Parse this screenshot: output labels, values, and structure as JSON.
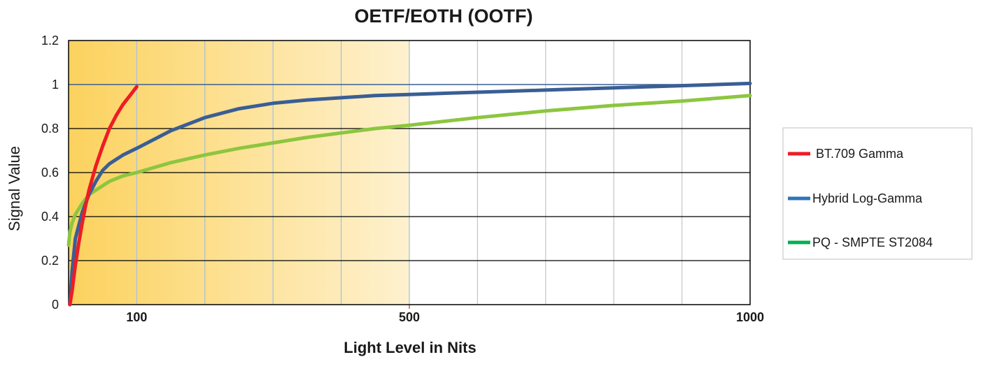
{
  "chart_data": {
    "type": "line",
    "title": "OETF/EOTH  (OOTF)",
    "xlabel": "Light Level in Nits",
    "ylabel": "Signal Value",
    "xlim": [
      0,
      1000
    ],
    "ylim": [
      0,
      1.2
    ],
    "x_ticks": [
      100,
      500,
      1000
    ],
    "x_tick_labels": [
      "100",
      "500",
      "1000"
    ],
    "y_ticks": [
      0,
      0.2,
      0.4,
      0.6,
      0.8,
      1,
      1.2
    ],
    "y_tick_labels": [
      "0",
      "0.2",
      "0.4",
      "0.6",
      "0.8",
      "1",
      "1.2"
    ],
    "grid": true,
    "legend_position": "right",
    "highlight_region": {
      "x_start": 0,
      "x_end": 500,
      "color_start": "#fcd25e",
      "color_end": "#fef1cf"
    },
    "colors": {
      "grid_major": "#000000",
      "grid_minor": "#c8c8c8",
      "plot_border": "#000000"
    },
    "series": [
      {
        "name": "BT.709  Gamma",
        "color": "#ee1c25",
        "x": [
          2,
          5,
          10,
          15,
          20,
          25,
          30,
          40,
          50,
          60,
          70,
          80,
          90,
          100
        ],
        "y": [
          0.0,
          0.06,
          0.18,
          0.28,
          0.37,
          0.45,
          0.52,
          0.63,
          0.72,
          0.8,
          0.86,
          0.91,
          0.95,
          0.99
        ]
      },
      {
        "name": "Hybrid Log-Gamma",
        "color": "#3a5e95",
        "legend_color": "#2e75b6",
        "x": [
          2,
          5,
          10,
          20,
          30,
          40,
          50,
          60,
          80,
          100,
          150,
          200,
          250,
          300,
          350,
          400,
          450,
          500,
          600,
          700,
          800,
          900,
          1000
        ],
        "y": [
          0.0,
          0.15,
          0.3,
          0.42,
          0.5,
          0.56,
          0.61,
          0.64,
          0.68,
          0.71,
          0.79,
          0.85,
          0.89,
          0.915,
          0.93,
          0.94,
          0.95,
          0.955,
          0.965,
          0.975,
          0.985,
          0.995,
          1.005
        ]
      },
      {
        "name": "PQ - SMPTE ST2084",
        "color": "#8cc63f",
        "legend_color": "#00b050",
        "x": [
          0,
          2,
          5,
          10,
          20,
          30,
          40,
          50,
          60,
          80,
          100,
          150,
          200,
          250,
          300,
          350,
          400,
          450,
          500,
          600,
          700,
          800,
          900,
          1000
        ],
        "y": [
          0.27,
          0.33,
          0.37,
          0.41,
          0.46,
          0.5,
          0.52,
          0.54,
          0.56,
          0.585,
          0.6,
          0.645,
          0.68,
          0.71,
          0.735,
          0.76,
          0.78,
          0.8,
          0.815,
          0.85,
          0.88,
          0.905,
          0.925,
          0.95
        ]
      }
    ]
  }
}
